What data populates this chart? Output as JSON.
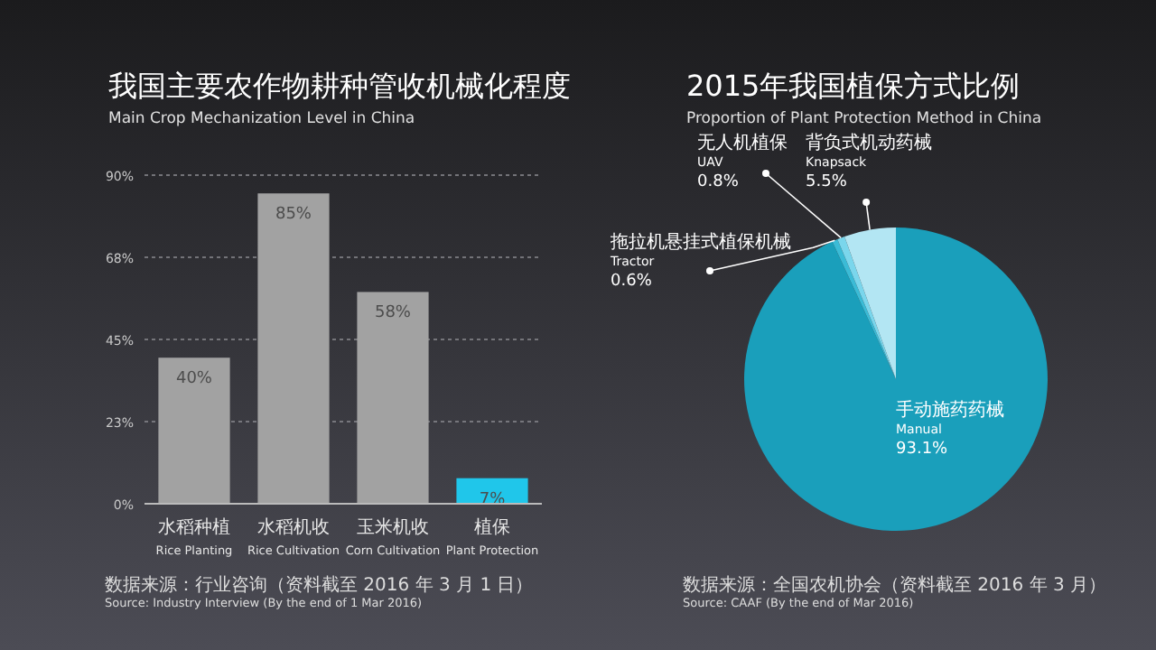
{
  "chart_data": [
    {
      "type": "bar",
      "title": "我国主要农作物耕种管收机械化程度",
      "subtitle": "Main Crop Mechanization Level in China",
      "categories": [
        "水稻种植\nRice Planting",
        "水稻机收\nRice Cultivation",
        "玉米机收\nCorn Cultivation",
        "植保\nPlant Protection"
      ],
      "values": [
        40,
        85,
        58,
        7
      ],
      "value_labels": [
        "40%",
        "85%",
        "58%",
        "7%"
      ],
      "colors": [
        "#a2a2a2",
        "#a2a2a2",
        "#a2a2a2",
        "#20c6ea"
      ],
      "ylim": [
        0,
        90
      ],
      "yticks": [
        {
          "value": 0,
          "label": "0%"
        },
        {
          "value": 22.5,
          "label": "23%"
        },
        {
          "value": 45,
          "label": "45%"
        },
        {
          "value": 67.5,
          "label": "68%"
        },
        {
          "value": 90,
          "label": "90%"
        }
      ],
      "grid": "y",
      "legend": false,
      "annotations": [
        "数据来源：行业咨询（资料截至 2016 年 3 月 1 日）",
        "Source: Industry Interview (By the end of 1 Mar 2016)"
      ]
    },
    {
      "type": "pie",
      "title": "2015年我国植保方式比例",
      "subtitle": "Proportion of Plant Protection Method in China",
      "categories": [
        "手动施药药械\nManual",
        "拖拉机悬挂式植保机械\nTractor",
        "无人机植保\nUAV",
        "背负式机动药械\nKnapsack"
      ],
      "values": [
        93.1,
        0.6,
        0.8,
        5.5
      ],
      "value_labels": [
        "93.1%",
        "0.6%",
        "0.8%",
        "5.5%"
      ],
      "colors": [
        "#1a9fbb",
        "#3bbbd6",
        "#7ad6ec",
        "#b3e6f3"
      ],
      "legend": false,
      "annotations": [
        "数据来源：全国农机协会（资料截至 2016 年 3 月）",
        "Source: CAAF (By the end of Mar 2016)"
      ]
    }
  ]
}
